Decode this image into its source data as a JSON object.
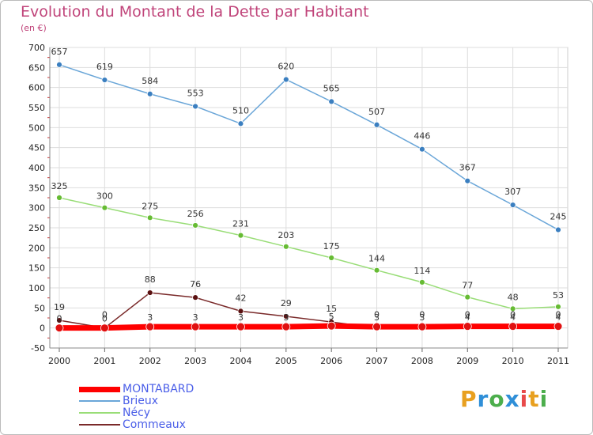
{
  "title": "Evolution du Montant de la Dette par Habitant",
  "subtitle": "(en €)",
  "logo": {
    "text": "Proxiti",
    "colors": [
      "#e8a020",
      "#2f8fd8",
      "#4cae4c",
      "#2f8fd8",
      "#e84a4a",
      "#e8a020",
      "#4cae4c"
    ]
  },
  "chart_data": {
    "type": "line",
    "x": [
      "2000",
      "2001",
      "2002",
      "2003",
      "2004",
      "2005",
      "2006",
      "2007",
      "2008",
      "2009",
      "2010",
      "2011"
    ],
    "ylim": [
      -50,
      700
    ],
    "yticks": [
      -50,
      0,
      50,
      100,
      150,
      200,
      250,
      300,
      350,
      400,
      450,
      500,
      550,
      600,
      650,
      700
    ],
    "grid": true,
    "legend_position": "bottom-left",
    "series": [
      {
        "name": "MONTABARD",
        "color": "#ff0000",
        "marker": "#e01010",
        "thick": true,
        "values": [
          0,
          0,
          3,
          3,
          3,
          3,
          5,
          3,
          3,
          4,
          4,
          4
        ],
        "labels": [
          "0",
          "0",
          "3",
          "3",
          "3",
          "3",
          "5",
          "3",
          "3",
          "4",
          "4",
          "4"
        ]
      },
      {
        "name": "Brieux",
        "color": "#6aa6d8",
        "marker": "#3b7fc0",
        "thick": false,
        "values": [
          657,
          619,
          584,
          553,
          510,
          620,
          565,
          507,
          446,
          367,
          307,
          245
        ],
        "labels": [
          "657",
          "619",
          "584",
          "553",
          "510",
          "620",
          "565",
          "507",
          "446",
          "367",
          "307",
          "245"
        ]
      },
      {
        "name": "Nécy",
        "color": "#99dd77",
        "marker": "#66bb33",
        "thick": false,
        "values": [
          325,
          300,
          275,
          256,
          231,
          203,
          175,
          144,
          114,
          77,
          48,
          53
        ],
        "labels": [
          "325",
          "300",
          "275",
          "256",
          "231",
          "203",
          "175",
          "144",
          "114",
          "77",
          "48",
          "53"
        ]
      },
      {
        "name": "Commeaux",
        "color": "#7a2a2a",
        "marker": "#5a1010",
        "thick": false,
        "values": [
          19,
          0,
          88,
          76,
          42,
          29,
          15,
          0,
          0,
          0,
          0,
          0
        ],
        "labels": [
          "19",
          "0",
          "88",
          "76",
          "42",
          "29",
          "15",
          "0",
          "0",
          "0",
          "0",
          "0"
        ]
      }
    ]
  }
}
